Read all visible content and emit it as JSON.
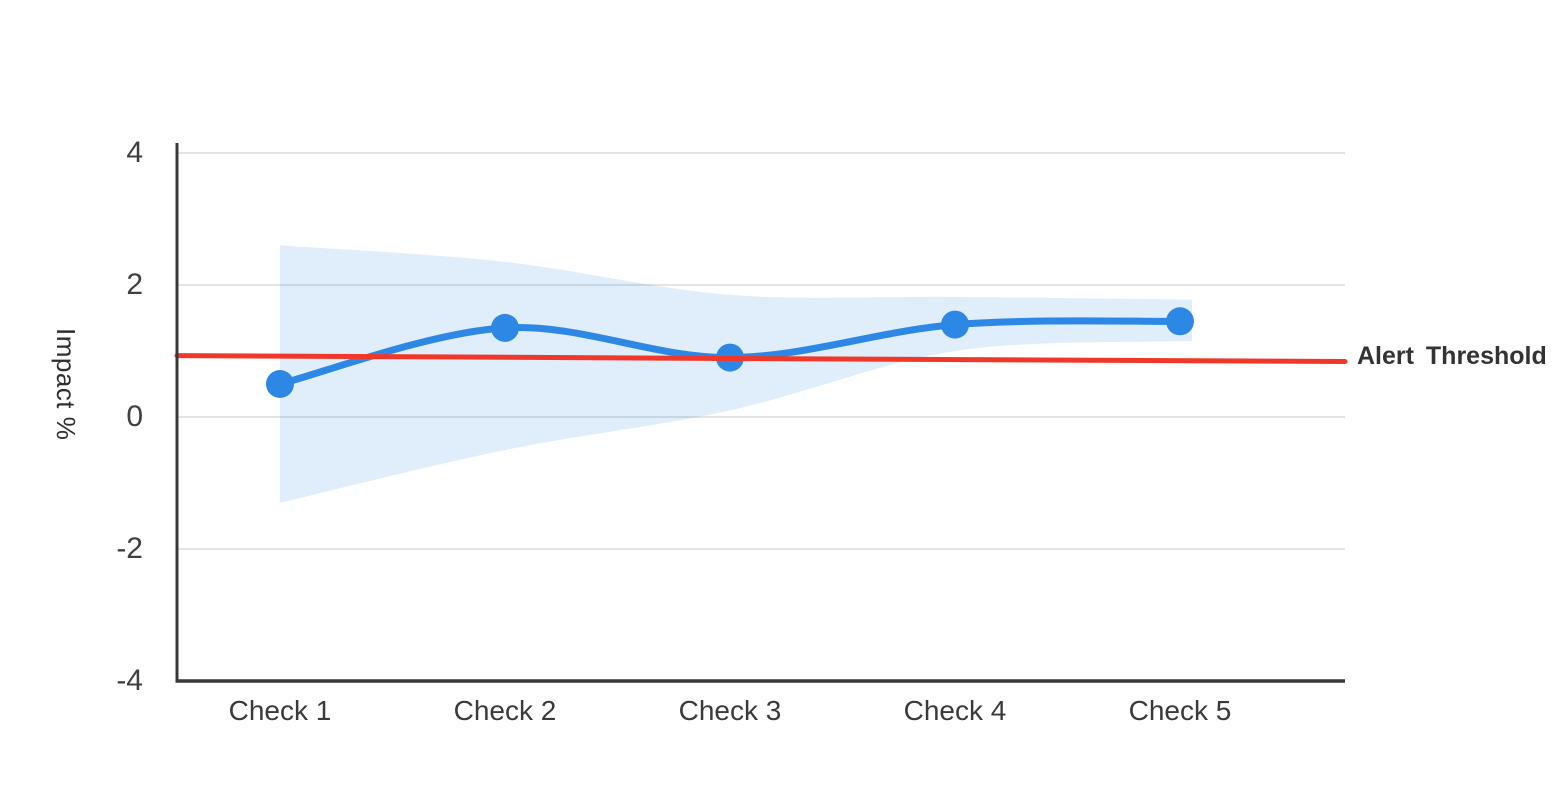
{
  "chart_data": {
    "type": "line",
    "categories": [
      "Check 1",
      "Check 2",
      "Check 3",
      "Check 4",
      "Check 5"
    ],
    "series": [
      {
        "name": "Impact",
        "values": [
          0.5,
          1.35,
          0.9,
          1.4,
          1.45
        ]
      }
    ],
    "confidence_band": {
      "upper": [
        2.6,
        2.35,
        1.85,
        1.82,
        1.78
      ],
      "lower": [
        -1.3,
        -0.5,
        0.1,
        1.0,
        1.15
      ]
    },
    "threshold": {
      "label": "Alert Threshold",
      "start_value": 0.93,
      "end_value": 0.84
    },
    "ylabel": "Impact %",
    "xlabel": "",
    "yticks": [
      4,
      2,
      0,
      -2,
      -4
    ],
    "ylim": [
      -4,
      4
    ],
    "grid": true,
    "legend": "none",
    "marker_radius_px": 14,
    "colors": {
      "line": "#2d88e5",
      "marker": "#2d88e5",
      "band": "rgba(45,136,229,0.15)",
      "threshold": "#ef3829",
      "grid": "#e3e3e3",
      "axis": "#383838",
      "tick_text": "#3f3f3f",
      "label_text": "#333333"
    }
  }
}
